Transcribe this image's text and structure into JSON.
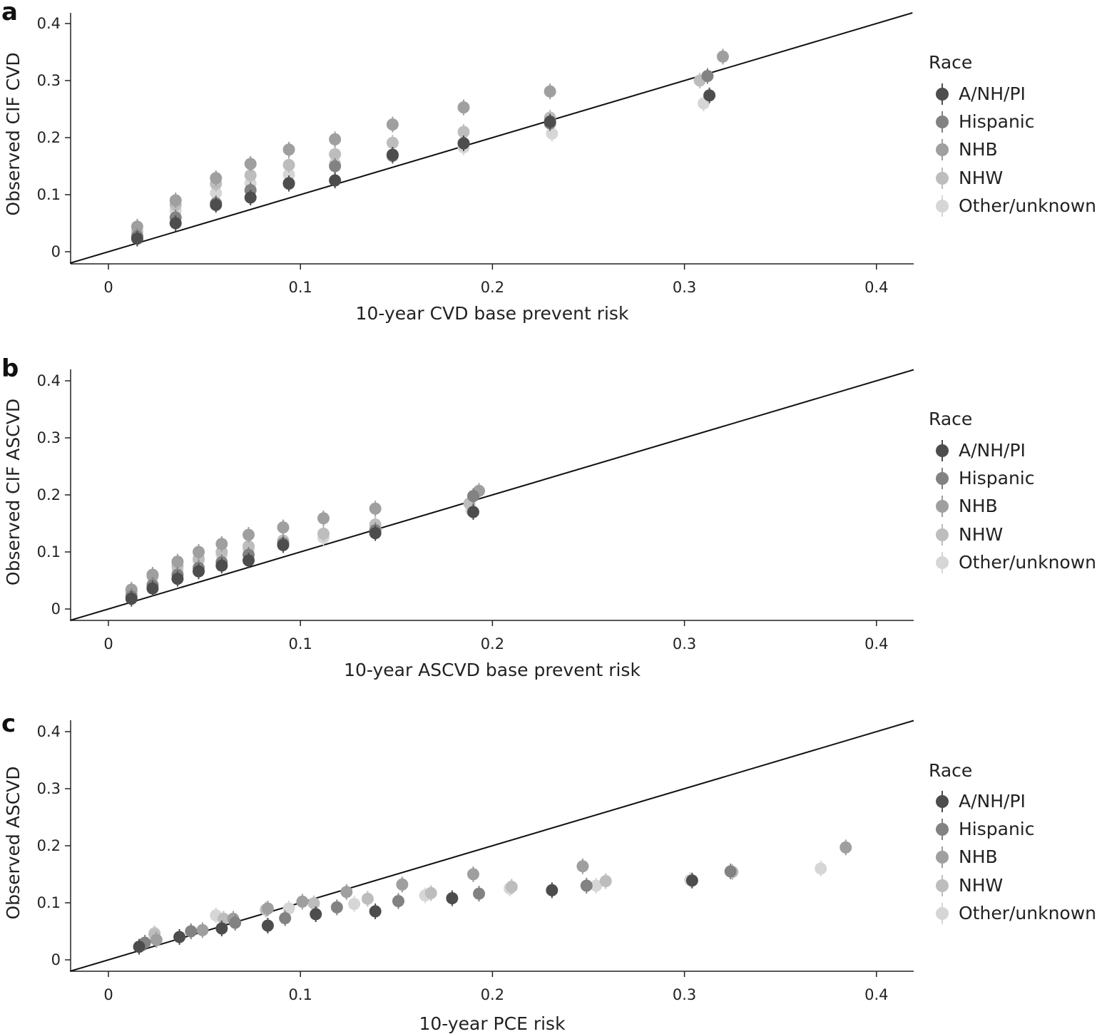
{
  "legend": {
    "title": "Race",
    "entries": [
      {
        "name": "A/NH/PI",
        "color": "#4d4d4d"
      },
      {
        "name": "Hispanic",
        "color": "#828282"
      },
      {
        "name": "NHB",
        "color": "#9f9f9f"
      },
      {
        "name": "NHW",
        "color": "#bdbdbd"
      },
      {
        "name": "Other/unknown",
        "color": "#d6d6d6"
      }
    ]
  },
  "chart_data": [
    {
      "type": "scatter",
      "panel_label": "a",
      "xlabel": "10-year CVD base prevent risk",
      "ylabel": "Observed CIF CVD",
      "xlim": [
        -0.02,
        0.42
      ],
      "ylim": [
        -0.02,
        0.42
      ],
      "x_ticks": [
        "0",
        "0.1",
        "0.2",
        "0.3",
        "0.4"
      ],
      "y_ticks": [
        "0",
        "0.1",
        "0.2",
        "0.3",
        "0.4"
      ],
      "reference_line": "y = x",
      "legend_position": "right",
      "series": [
        {
          "name": "A/NH/PI",
          "points": [
            [
              0.015,
              0.023
            ],
            [
              0.035,
              0.05
            ],
            [
              0.056,
              0.082
            ],
            [
              0.074,
              0.095
            ],
            [
              0.094,
              0.12
            ],
            [
              0.118,
              0.125
            ],
            [
              0.148,
              0.17
            ],
            [
              0.185,
              0.19
            ],
            [
              0.23,
              0.228
            ],
            [
              0.313,
              0.274
            ]
          ]
        },
        {
          "name": "Hispanic",
          "points": [
            [
              0.015,
              0.027
            ],
            [
              0.035,
              0.06
            ],
            [
              0.056,
              0.085
            ],
            [
              0.074,
              0.108
            ],
            [
              0.094,
              0.119
            ],
            [
              0.118,
              0.15
            ],
            [
              0.148,
              0.168
            ],
            [
              0.185,
              0.19
            ],
            [
              0.23,
              0.225
            ],
            [
              0.312,
              0.308
            ]
          ]
        },
        {
          "name": "NHB",
          "points": [
            [
              0.015,
              0.044
            ],
            [
              0.035,
              0.09
            ],
            [
              0.056,
              0.129
            ],
            [
              0.074,
              0.154
            ],
            [
              0.094,
              0.179
            ],
            [
              0.118,
              0.197
            ],
            [
              0.148,
              0.223
            ],
            [
              0.185,
              0.253
            ],
            [
              0.23,
              0.281
            ],
            [
              0.32,
              0.342
            ]
          ]
        },
        {
          "name": "NHW",
          "points": [
            [
              0.015,
              0.035
            ],
            [
              0.035,
              0.082
            ],
            [
              0.056,
              0.119
            ],
            [
              0.074,
              0.134
            ],
            [
              0.094,
              0.152
            ],
            [
              0.118,
              0.171
            ],
            [
              0.148,
              0.191
            ],
            [
              0.185,
              0.21
            ],
            [
              0.23,
              0.235
            ],
            [
              0.308,
              0.3
            ]
          ]
        },
        {
          "name": "Other/unknown",
          "points": [
            [
              0.015,
              0.03
            ],
            [
              0.035,
              0.072
            ],
            [
              0.056,
              0.103
            ],
            [
              0.074,
              0.12
            ],
            [
              0.094,
              0.135
            ],
            [
              0.118,
              0.155
            ],
            [
              0.148,
              0.17
            ],
            [
              0.185,
              0.183
            ],
            [
              0.231,
              0.207
            ],
            [
              0.31,
              0.26
            ]
          ]
        }
      ]
    },
    {
      "type": "scatter",
      "panel_label": "b",
      "xlabel": "10-year ASCVD base prevent risk",
      "ylabel": "Observed CIF ASCVD",
      "xlim": [
        -0.02,
        0.42
      ],
      "ylim": [
        -0.02,
        0.42
      ],
      "x_ticks": [
        "0",
        "0.1",
        "0.2",
        "0.3",
        "0.4"
      ],
      "y_ticks": [
        "0",
        "0.1",
        "0.2",
        "0.3",
        "0.4"
      ],
      "reference_line": "y = x",
      "legend_position": "right",
      "series": [
        {
          "name": "A/NH/PI",
          "points": [
            [
              0.012,
              0.018
            ],
            [
              0.023,
              0.036
            ],
            [
              0.036,
              0.053
            ],
            [
              0.047,
              0.066
            ],
            [
              0.059,
              0.076
            ],
            [
              0.073,
              0.085
            ],
            [
              0.091,
              0.112
            ],
            [
              0.139,
              0.133
            ],
            [
              0.19,
              0.17
            ]
          ]
        },
        {
          "name": "Hispanic",
          "points": [
            [
              0.012,
              0.022
            ],
            [
              0.023,
              0.042
            ],
            [
              0.036,
              0.06
            ],
            [
              0.047,
              0.072
            ],
            [
              0.059,
              0.082
            ],
            [
              0.073,
              0.095
            ],
            [
              0.091,
              0.115
            ],
            [
              0.139,
              0.138
            ],
            [
              0.19,
              0.198
            ]
          ]
        },
        {
          "name": "NHB",
          "points": [
            [
              0.012,
              0.034
            ],
            [
              0.023,
              0.06
            ],
            [
              0.036,
              0.083
            ],
            [
              0.047,
              0.1
            ],
            [
              0.059,
              0.114
            ],
            [
              0.073,
              0.13
            ],
            [
              0.091,
              0.143
            ],
            [
              0.112,
              0.159
            ],
            [
              0.139,
              0.176
            ],
            [
              0.193,
              0.207
            ]
          ]
        },
        {
          "name": "NHW",
          "points": [
            [
              0.012,
              0.03
            ],
            [
              0.023,
              0.058
            ],
            [
              0.036,
              0.075
            ],
            [
              0.047,
              0.088
            ],
            [
              0.059,
              0.1
            ],
            [
              0.073,
              0.11
            ],
            [
              0.091,
              0.12
            ],
            [
              0.112,
              0.132
            ],
            [
              0.139,
              0.148
            ],
            [
              0.188,
              0.185
            ]
          ]
        },
        {
          "name": "Other/unknown",
          "points": [
            [
              0.012,
              0.026
            ],
            [
              0.023,
              0.056
            ],
            [
              0.036,
              0.068
            ],
            [
              0.047,
              0.085
            ],
            [
              0.059,
              0.095
            ],
            [
              0.073,
              0.105
            ],
            [
              0.091,
              0.118
            ],
            [
              0.112,
              0.125
            ],
            [
              0.139,
              0.14
            ],
            [
              0.189,
              0.173
            ]
          ]
        }
      ]
    },
    {
      "type": "scatter",
      "panel_label": "c",
      "xlabel": "10-year PCE risk",
      "ylabel": "Observed ASCVD",
      "xlim": [
        -0.02,
        0.42
      ],
      "ylim": [
        -0.02,
        0.42
      ],
      "x_ticks": [
        "0",
        "0.1",
        "0.2",
        "0.3",
        "0.4"
      ],
      "y_ticks": [
        "0",
        "0.1",
        "0.2",
        "0.3",
        "0.4"
      ],
      "reference_line": "y = x",
      "legend_position": "right",
      "series": [
        {
          "name": "A/NH/PI",
          "points": [
            [
              0.016,
              0.023
            ],
            [
              0.037,
              0.04
            ],
            [
              0.059,
              0.055
            ],
            [
              0.083,
              0.06
            ],
            [
              0.108,
              0.08
            ],
            [
              0.139,
              0.085
            ],
            [
              0.179,
              0.108
            ],
            [
              0.231,
              0.122
            ],
            [
              0.304,
              0.139
            ]
          ]
        },
        {
          "name": "Hispanic",
          "points": [
            [
              0.019,
              0.03
            ],
            [
              0.043,
              0.05
            ],
            [
              0.066,
              0.065
            ],
            [
              0.092,
              0.073
            ],
            [
              0.119,
              0.092
            ],
            [
              0.151,
              0.103
            ],
            [
              0.193,
              0.116
            ],
            [
              0.249,
              0.13
            ],
            [
              0.324,
              0.155
            ]
          ]
        },
        {
          "name": "NHB",
          "points": [
            [
              0.025,
              0.035
            ],
            [
              0.049,
              0.052
            ],
            [
              0.065,
              0.072
            ],
            [
              0.083,
              0.09
            ],
            [
              0.101,
              0.102
            ],
            [
              0.124,
              0.119
            ],
            [
              0.153,
              0.132
            ],
            [
              0.19,
              0.15
            ],
            [
              0.247,
              0.164
            ],
            [
              0.384,
              0.197
            ]
          ]
        },
        {
          "name": "NHW",
          "points": [
            [
              0.024,
              0.045
            ],
            [
              0.06,
              0.072
            ],
            [
              0.082,
              0.088
            ],
            [
              0.107,
              0.099
            ],
            [
              0.135,
              0.107
            ],
            [
              0.168,
              0.117
            ],
            [
              0.21,
              0.128
            ],
            [
              0.259,
              0.138
            ],
            [
              0.325,
              0.154
            ]
          ]
        },
        {
          "name": "Other/unknown",
          "points": [
            [
              0.024,
              0.047
            ],
            [
              0.056,
              0.078
            ],
            [
              0.094,
              0.09
            ],
            [
              0.128,
              0.098
            ],
            [
              0.165,
              0.113
            ],
            [
              0.209,
              0.125
            ],
            [
              0.254,
              0.13
            ],
            [
              0.303,
              0.14
            ],
            [
              0.371,
              0.16
            ]
          ]
        }
      ]
    }
  ]
}
